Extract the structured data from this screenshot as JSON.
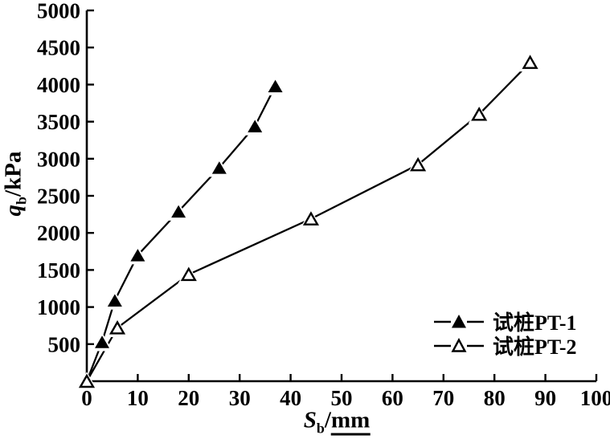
{
  "chart_data": {
    "type": "line",
    "title": "",
    "xlabel": "Sb/mm",
    "ylabel": "qb/kPa",
    "xlim": [
      0,
      100
    ],
    "ylim": [
      0,
      5000
    ],
    "x_ticks": [
      0,
      10,
      20,
      30,
      40,
      50,
      60,
      70,
      80,
      90,
      100
    ],
    "y_ticks": [
      500,
      1000,
      1500,
      2000,
      2500,
      3000,
      3500,
      4000,
      4500,
      5000
    ],
    "grid": false,
    "legend_position": "inside lower-right",
    "series": [
      {
        "name": "试桩PT-1",
        "marker": "filled-triangle",
        "color": "#000000",
        "points": [
          [
            0,
            0
          ],
          [
            3,
            530
          ],
          [
            5.5,
            1090
          ],
          [
            10,
            1700
          ],
          [
            18,
            2290
          ],
          [
            26,
            2880
          ],
          [
            33,
            3440
          ],
          [
            37,
            3980
          ]
        ]
      },
      {
        "name": "试桩PT-2",
        "marker": "open-triangle",
        "color": "#000000",
        "points": [
          [
            0,
            0
          ],
          [
            6,
            720
          ],
          [
            20,
            1440
          ],
          [
            44,
            2190
          ],
          [
            65,
            2920
          ],
          [
            77,
            3600
          ],
          [
            87,
            4300
          ]
        ]
      }
    ]
  },
  "labels": {
    "y_var": "q",
    "y_sub": "b",
    "y_unit": "/kPa",
    "x_var": "S",
    "x_sub": "b",
    "x_slash": "/",
    "x_unit": "mm"
  },
  "colors": {
    "background": "#ffffff",
    "axis": "#000000",
    "series": "#000000"
  }
}
